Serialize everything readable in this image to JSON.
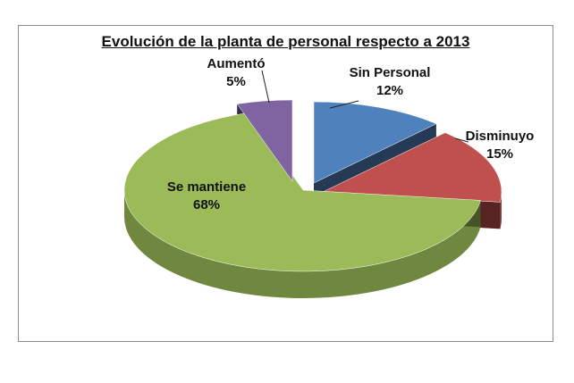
{
  "chart_data": {
    "type": "pie",
    "title": "Evolución de la planta de personal respecto a 2013",
    "categories": [
      "Sin Personal",
      "Disminuyo",
      "Se mantiene",
      "Aumentó"
    ],
    "values": [
      12,
      15,
      68,
      5
    ],
    "value_labels": [
      "12%",
      "15%",
      "68%",
      "5%"
    ],
    "colors": [
      "#4f81bd",
      "#c0504d",
      "#9bbb59",
      "#8064a2"
    ],
    "style": "3d-exploded",
    "legend": "none"
  }
}
